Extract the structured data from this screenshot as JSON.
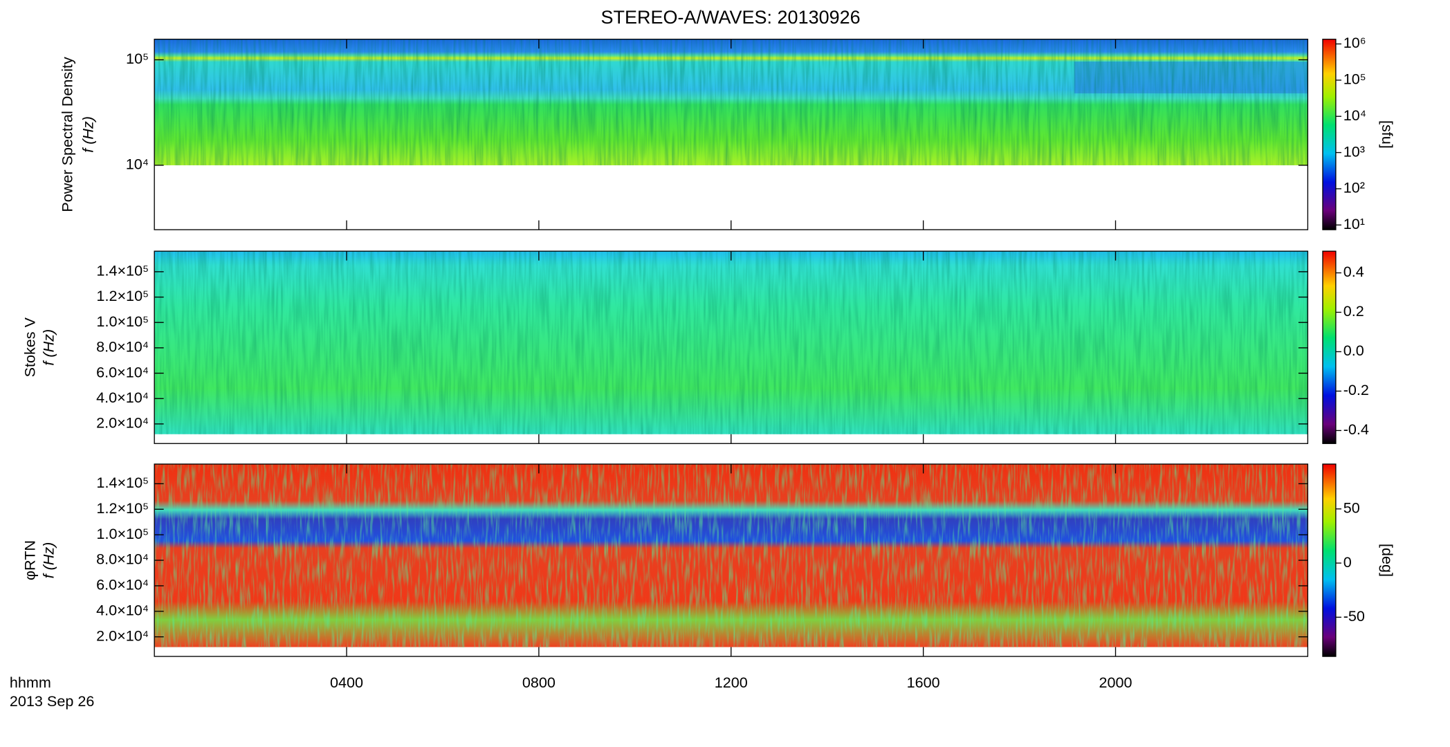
{
  "title": "STEREO-A/WAVES: 20130926",
  "x_axis": {
    "xlim": [
      0,
      24
    ],
    "xticks": [
      {
        "value": 4,
        "label": "0400"
      },
      {
        "value": 8,
        "label": "0800"
      },
      {
        "value": 12,
        "label": "1200"
      },
      {
        "value": 16,
        "label": "1600"
      },
      {
        "value": 20,
        "label": "2000"
      }
    ],
    "label": "hhmm",
    "date": "2013 Sep 26"
  },
  "chart_data": [
    {
      "type": "heatmap",
      "ylabel": [
        "Power Spectral Density",
        "f (Hz)"
      ],
      "ylog": true,
      "ylim": [
        2450,
        156700
      ],
      "yticks": [
        {
          "value": 10000,
          "label": "10⁴"
        },
        {
          "value": 100000,
          "label": "10⁵"
        }
      ],
      "colorbar": {
        "log": true,
        "clim": [
          7.4,
          1350000
        ],
        "cticks": [
          {
            "value": 10,
            "label": "10¹"
          },
          {
            "value": 100,
            "label": "10²"
          },
          {
            "value": 1000,
            "label": "10³"
          },
          {
            "value": 10000,
            "label": "10⁴"
          },
          {
            "value": 100000,
            "label": "10⁵"
          },
          {
            "value": 1000000,
            "label": "10⁶"
          }
        ],
        "label": "[sfu]"
      }
    },
    {
      "type": "heatmap",
      "ylabel": [
        "Stokes V",
        "f (Hz)"
      ],
      "ylog": false,
      "ylim": [
        4540,
        156200
      ],
      "yticks": [
        {
          "value": 20000,
          "label": "2.0×10⁴"
        },
        {
          "value": 40000,
          "label": "4.0×10⁴"
        },
        {
          "value": 60000,
          "label": "6.0×10⁴"
        },
        {
          "value": 80000,
          "label": "8.0×10⁴"
        },
        {
          "value": 100000,
          "label": "1.0×10⁵"
        },
        {
          "value": 120000,
          "label": "1.2×10⁵"
        },
        {
          "value": 140000,
          "label": "1.4×10⁵"
        }
      ],
      "colorbar": {
        "log": false,
        "clim": [
          -0.466,
          0.51
        ],
        "cticks": [
          -0.4,
          -0.2,
          {
            "value": 0,
            "label": "0.0"
          },
          0.2,
          0.4
        ]
      }
    },
    {
      "type": "heatmap",
      "ylabel": [
        "φRTN",
        "f (Hz)"
      ],
      "ylog": false,
      "ylim": [
        4630,
        155400
      ],
      "yticks": [
        {
          "value": 20000,
          "label": "2.0×10⁴"
        },
        {
          "value": 40000,
          "label": "4.0×10⁴"
        },
        {
          "value": 60000,
          "label": "6.0×10⁴"
        },
        {
          "value": 80000,
          "label": "8.0×10⁴"
        },
        {
          "value": 100000,
          "label": "1.0×10⁵"
        },
        {
          "value": 120000,
          "label": "1.2×10⁵"
        },
        {
          "value": 140000,
          "label": "1.4×10⁵"
        }
      ],
      "colorbar": {
        "log": false,
        "clim": [
          -86.2,
          91.4
        ],
        "cticks": [
          -50,
          0,
          50
        ],
        "label": "[deg]"
      }
    }
  ]
}
